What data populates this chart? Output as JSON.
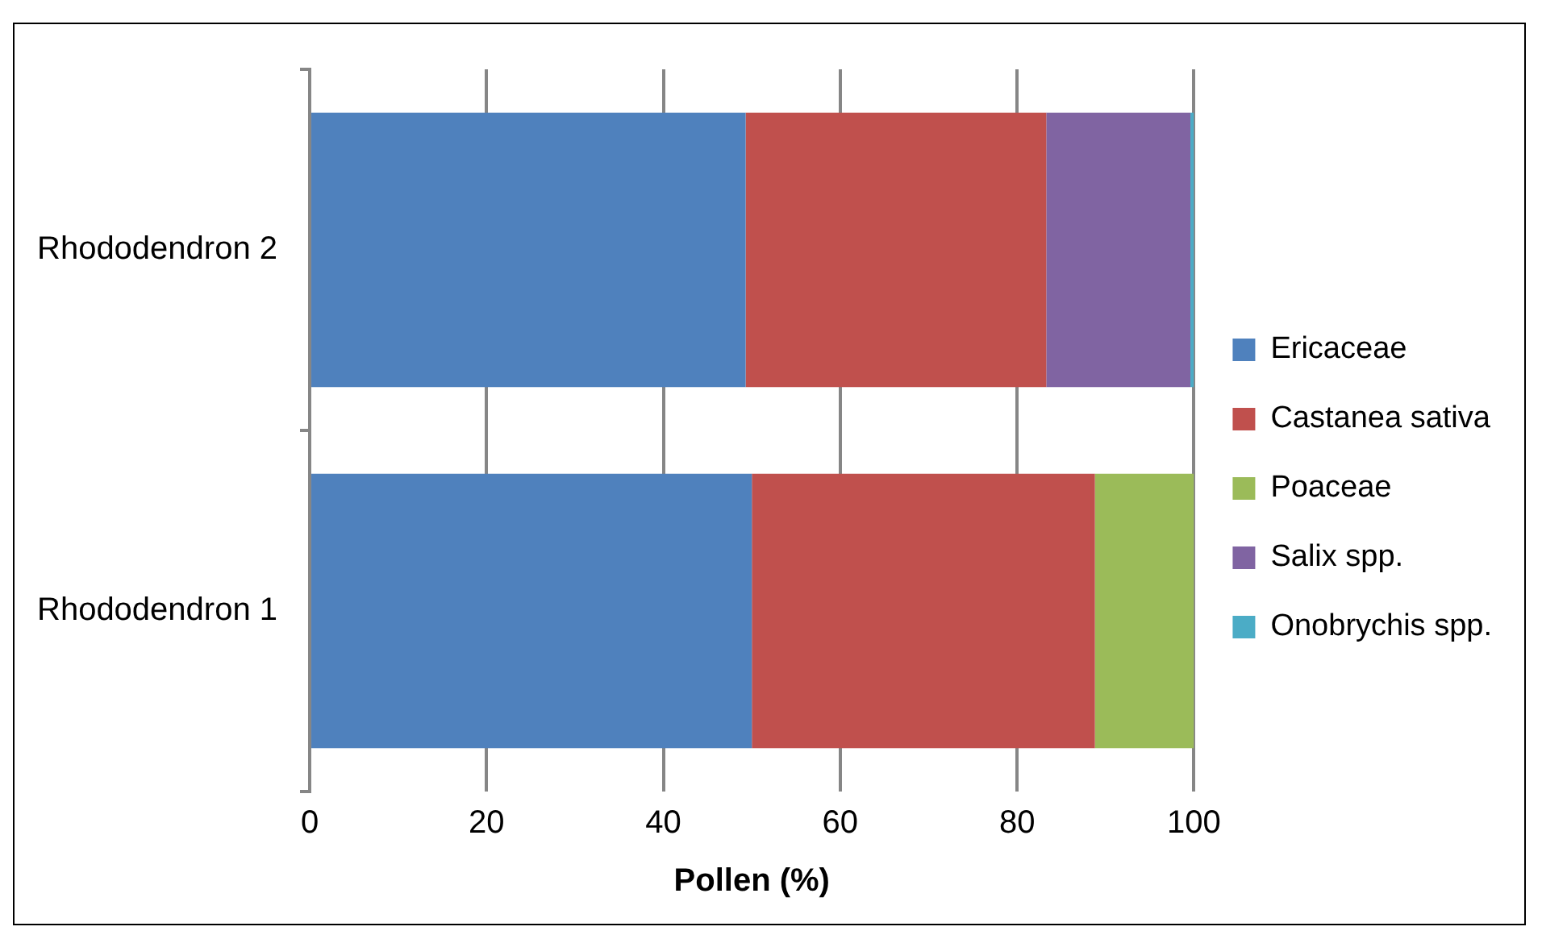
{
  "chart_data": {
    "type": "bar",
    "orientation": "horizontal",
    "stacked": true,
    "categories": [
      "Rhododendron 2",
      "Rhododendron 1"
    ],
    "series": [
      {
        "name": "Ericaceae",
        "color": "#4f81bd",
        "values": [
          49.3,
          50
        ]
      },
      {
        "name": "Castanea sativa",
        "color": "#c0504d",
        "values": [
          34,
          38.8
        ]
      },
      {
        "name": "Poaceae",
        "color": "#9bbb59",
        "values": [
          null,
          11.2
        ]
      },
      {
        "name": "Salix spp.",
        "color": "#8064a2",
        "values": [
          16.3,
          null
        ]
      },
      {
        "name": "Onobrychis spp.",
        "color": "#4bacc6",
        "values": [
          0.4,
          null
        ]
      }
    ],
    "xlabel": "Pollen (%)",
    "xlim": [
      0,
      100
    ],
    "xticks": [
      0,
      20,
      40,
      60,
      80,
      100
    ],
    "grid": "x",
    "legend": "right"
  }
}
